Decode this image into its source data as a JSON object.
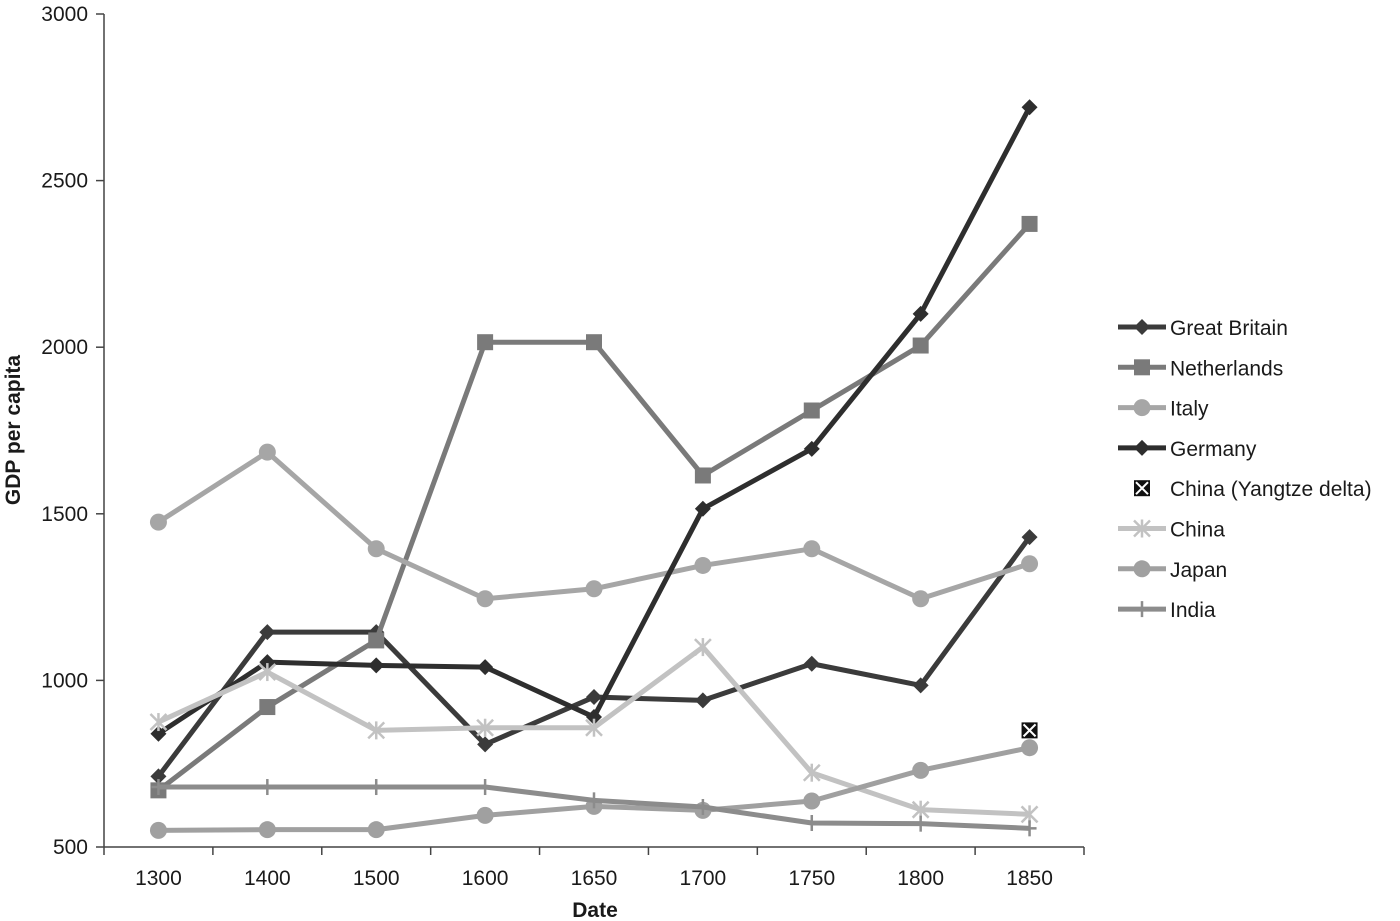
{
  "chart_data": {
    "type": "line",
    "xlabel": "Date",
    "ylabel": "GDP per capita",
    "categories": [
      "1300",
      "1400",
      "1500",
      "1600",
      "1650",
      "1700",
      "1750",
      "1800",
      "1850"
    ],
    "ylim": [
      500,
      3000
    ],
    "yticks": [
      500,
      1000,
      1500,
      2000,
      2500,
      3000
    ],
    "grid": false,
    "legend_position": "right",
    "series": [
      {
        "name": "Great Britain",
        "marker": "diamond",
        "color": "#3b3b3b",
        "width": 5,
        "values": [
          712,
          1145,
          1145,
          808,
          950,
          940,
          1050,
          985,
          1430
        ]
      },
      {
        "name": "Netherlands",
        "marker": "square",
        "color": "#7a7a7a",
        "width": 5,
        "values": [
          670,
          920,
          1120,
          2015,
          2015,
          1615,
          1810,
          2005,
          2370
        ]
      },
      {
        "name": "Italy",
        "marker": "circle",
        "color": "#a6a6a6",
        "width": 5,
        "values": [
          1475,
          1685,
          1395,
          1245,
          1275,
          1345,
          1395,
          1245,
          1350
        ]
      },
      {
        "name": "Germany",
        "marker": "diamond",
        "color": "#2e2e2e",
        "width": 5,
        "values": [
          840,
          1055,
          1045,
          1040,
          890,
          1515,
          1695,
          2100,
          2720
        ]
      },
      {
        "name": "China (Yangtze delta)",
        "marker": "xbox",
        "color": "#111111",
        "width": 0,
        "values": [
          null,
          null,
          null,
          null,
          null,
          null,
          null,
          null,
          850
        ]
      },
      {
        "name": "China",
        "marker": "star",
        "color": "#c2c2c2",
        "width": 5,
        "values": [
          875,
          1025,
          850,
          858,
          858,
          1100,
          723,
          612,
          598
        ]
      },
      {
        "name": "Japan",
        "marker": "circle",
        "color": "#a0a0a0",
        "width": 5,
        "values": [
          550,
          552,
          552,
          595,
          622,
          610,
          638,
          730,
          798
        ]
      },
      {
        "name": "India",
        "marker": "plus",
        "color": "#8c8c8c",
        "width": 5,
        "values": [
          680,
          680,
          680,
          680,
          640,
          620,
          572,
          570,
          556
        ]
      }
    ]
  }
}
